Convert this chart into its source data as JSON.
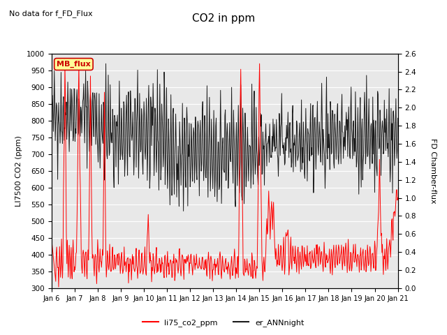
{
  "title": "CO2 in ppm",
  "subtitle": "No data for f_FD_Flux",
  "ylabel_left": "LI7500 CO2 (ppm)",
  "ylabel_right": "FD Chamber-flux",
  "ylim_left": [
    300,
    1000
  ],
  "ylim_right": [
    0.0,
    2.6
  ],
  "xtick_labels": [
    "Jan 6",
    "Jan 7",
    "Jan 8",
    "Jan 9",
    "Jan 10",
    "Jan 11",
    "Jan 12",
    "Jan 13",
    "Jan 14",
    "Jan 15",
    "Jan 16",
    "Jan 17",
    "Jan 18",
    "Jan 19",
    "Jan 20",
    "Jan 21"
  ],
  "yticks_left": [
    300,
    350,
    400,
    450,
    500,
    550,
    600,
    650,
    700,
    750,
    800,
    850,
    900,
    950,
    1000
  ],
  "yticks_right": [
    0.0,
    0.2,
    0.4,
    0.6,
    0.8,
    1.0,
    1.2,
    1.4,
    1.6,
    1.8,
    2.0,
    2.2,
    2.4,
    2.6
  ],
  "color_li75": "#ff0000",
  "color_er": "#1a1a1a",
  "color_mb_flux_bg": "#ffff99",
  "color_mb_flux_text": "#cc0000",
  "color_mb_flux_border": "#cc0000",
  "legend_labels": [
    "li75_co2_ppm",
    "er_ANNnight"
  ],
  "plot_bg_color": "#e8e8e8",
  "fig_size": [
    6.4,
    4.8
  ],
  "dpi": 100
}
